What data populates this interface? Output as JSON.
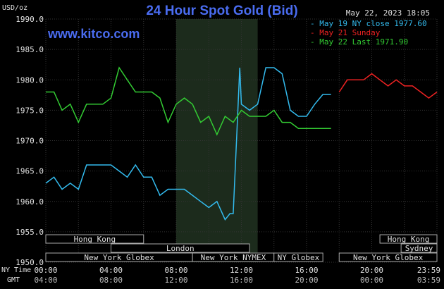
{
  "header": {
    "title": "24 Hour Spot Gold (Bid)",
    "site": "www.kitco.com",
    "datetime": "May 22, 2023 18:05",
    "unit": "USD/oz"
  },
  "legend": [
    {
      "label": "May 19 NY close 1977.60",
      "color": "#33bbee"
    },
    {
      "label": "May 21 Sunday",
      "color": "#ee2222"
    },
    {
      "label": "May 22 Last 1971.90",
      "color": "#33cc33"
    }
  ],
  "sessions": [
    {
      "label": "Hong Kong",
      "row": 0,
      "from": 0,
      "to": 6
    },
    {
      "label": "London",
      "row": 1,
      "from": 4,
      "to": 12.5
    },
    {
      "label": "New York Globex",
      "row": 2,
      "from": 0,
      "to": 9
    },
    {
      "label": "New York NYMEX",
      "row": 2,
      "from": 9,
      "to": 14
    },
    {
      "label": "NY Globex",
      "row": 2,
      "from": 14,
      "to": 17
    },
    {
      "label": "Hong Kong",
      "row": 0,
      "from": 20.5,
      "to": 24
    },
    {
      "label": "Sydney",
      "row": 1,
      "from": 21.8,
      "to": 24
    },
    {
      "label": "New York Globex",
      "row": 2,
      "from": 18,
      "to": 24
    }
  ],
  "session_rows_left": [
    "",
    "",
    ""
  ],
  "time_labels": {
    "ny_label": "NY Time",
    "gmt_label": "GMT",
    "ny": [
      "00:00",
      "04:00",
      "08:00",
      "12:00",
      "16:00",
      "20:00",
      "23:59"
    ],
    "gmt": [
      "04:00",
      "08:00",
      "12:00",
      "16:00",
      "20:00",
      "00:00",
      "03:59"
    ]
  },
  "colors": {
    "background": "#000000",
    "grid": "#333333",
    "highlight": "#1c2b1c",
    "axis_text": "#e0e0e0",
    "accent": "#4a6cf0"
  },
  "chart_data": {
    "type": "line",
    "ylim": [
      1950,
      1990
    ],
    "yticks": [
      "1990.0",
      "1985.0",
      "1980.0",
      "1975.0",
      "1970.0",
      "1965.0",
      "1960.0",
      "1955.0",
      "1950.0"
    ],
    "xlim": [
      0,
      24
    ],
    "xlabel": "",
    "ylabel": "",
    "series": [
      {
        "name": "May 19 NY close 1977.60",
        "color": "#33bbee",
        "x": [
          0,
          0.5,
          1,
          1.5,
          2,
          2.5,
          3,
          3.5,
          4,
          4.5,
          5,
          5.5,
          6,
          6.5,
          7,
          7.5,
          8,
          8.5,
          9,
          9.5,
          10,
          10.5,
          11,
          11.3,
          11.5,
          11.7,
          11.9,
          12,
          12.5,
          13,
          13.5,
          14,
          14.5,
          15,
          15.5,
          16,
          16.5,
          17,
          17.5
        ],
        "y": [
          1963,
          1964,
          1962,
          1963,
          1962,
          1966,
          1966,
          1966,
          1966,
          1965,
          1964,
          1966,
          1964,
          1964,
          1961,
          1962,
          1962,
          1962,
          1961,
          1960,
          1959,
          1960,
          1957,
          1958,
          1958,
          1970,
          1982,
          1976,
          1975,
          1976,
          1982,
          1982,
          1981,
          1975,
          1974,
          1974,
          1976,
          1977.6,
          1977.6
        ]
      },
      {
        "name": "May 21 Sunday",
        "color": "#ee2222",
        "x": [
          18,
          18.5,
          19,
          19.5,
          20,
          20.5,
          21,
          21.5,
          22,
          22.5,
          23,
          23.5,
          24
        ],
        "y": [
          1978,
          1980,
          1980,
          1980,
          1981,
          1980,
          1979,
          1980,
          1979,
          1979,
          1978,
          1977,
          1978
        ]
      },
      {
        "name": "May 22 Last 1971.90",
        "color": "#33cc33",
        "x": [
          0,
          0.5,
          1,
          1.5,
          2,
          2.5,
          3,
          3.5,
          4,
          4.5,
          5,
          5.5,
          6,
          6.5,
          7,
          7.5,
          8,
          8.5,
          9,
          9.5,
          10,
          10.5,
          11,
          11.5,
          12,
          12.5,
          13,
          13.5,
          14,
          14.5,
          15,
          15.5,
          16,
          16.5,
          17,
          17.5
        ],
        "y": [
          1978,
          1978,
          1975,
          1976,
          1973,
          1976,
          1976,
          1976,
          1977,
          1982,
          1980,
          1978,
          1978,
          1978,
          1977,
          1973,
          1976,
          1977,
          1976,
          1973,
          1974,
          1971,
          1974,
          1973,
          1975,
          1974,
          1974,
          1974,
          1975,
          1973,
          1973,
          1972,
          1972,
          1972,
          1972,
          1972
        ]
      }
    ]
  }
}
